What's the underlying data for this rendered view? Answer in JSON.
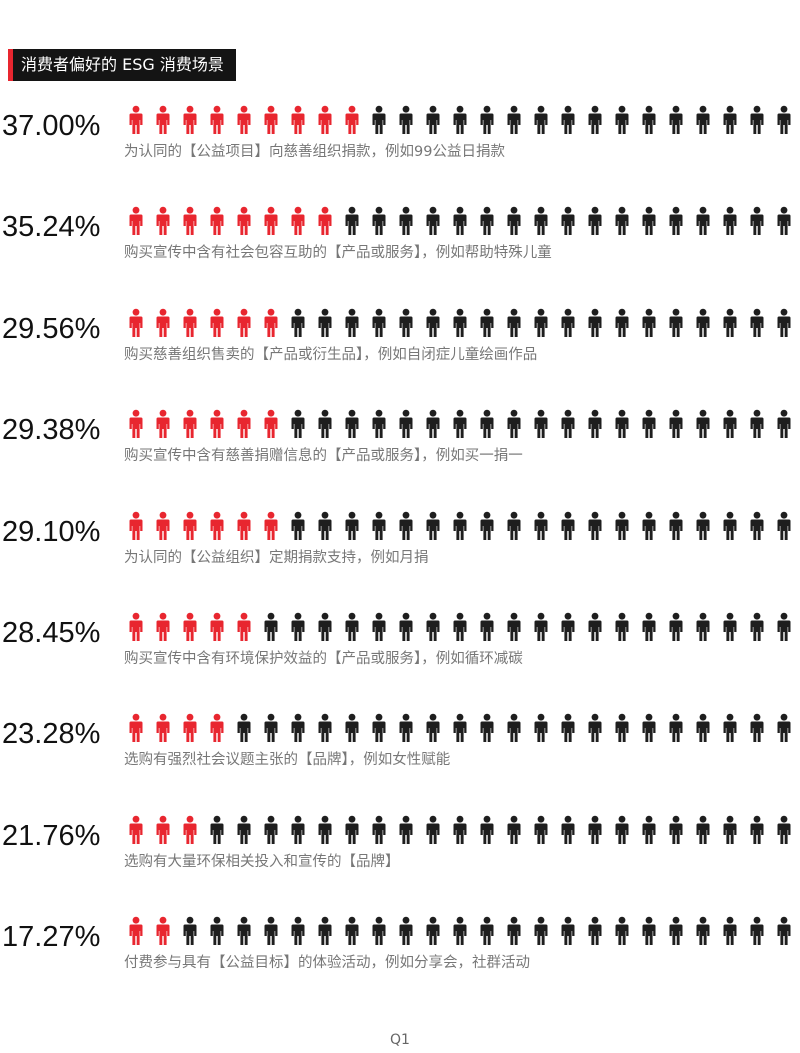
{
  "title": "消费者偏好的 ESG 消费场景",
  "footer": "Q1",
  "colors": {
    "highlight": "#e8262f",
    "base": "#1e1e1e",
    "label": "#777777"
  },
  "icon_name": "person-icon",
  "chart_data": {
    "type": "pictograph",
    "icons_per_row": 25,
    "title": "消费者偏好的 ESG 消费场景",
    "rows": [
      {
        "value": "37.00%",
        "label": "为认同的【公益项目】向慈善组织捐款，例如99公益日捐款",
        "highlighted": 9
      },
      {
        "value": "35.24%",
        "label": "购买宣传中含有社会包容互助的【产品或服务】，例如帮助特殊儿童",
        "highlighted": 8
      },
      {
        "value": "29.56%",
        "label": "购买慈善组织售卖的【产品或衍生品】，例如自闭症儿童绘画作品",
        "highlighted": 6
      },
      {
        "value": "29.38%",
        "label": "购买宣传中含有慈善捐赠信息的【产品或服务】，例如买一捐一",
        "highlighted": 6
      },
      {
        "value": "29.10%",
        "label": "为认同的【公益组织】定期捐款支持，例如月捐",
        "highlighted": 6
      },
      {
        "value": "28.45%",
        "label": "购买宣传中含有环境保护效益的【产品或服务】，例如循环减碳",
        "highlighted": 5
      },
      {
        "value": "23.28%",
        "label": "选购有强烈社会议题主张的【品牌】，例如女性赋能",
        "highlighted": 4
      },
      {
        "value": "21.76%",
        "label": "选购有大量环保相关投入和宣传的【品牌】",
        "highlighted": 3
      },
      {
        "value": "17.27%",
        "label": "付费参与具有【公益目标】的体验活动，例如分享会，社群活动",
        "highlighted": 2
      }
    ]
  }
}
